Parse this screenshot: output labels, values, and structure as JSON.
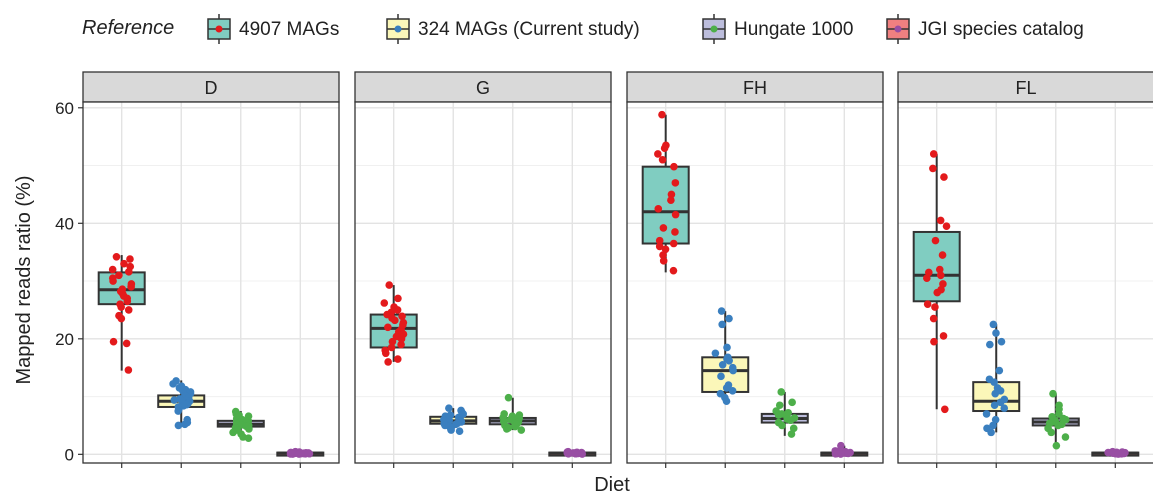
{
  "chart_data": {
    "type": "box",
    "xlabel": "Diet",
    "ylabel": "Mapped reads ratio (%)",
    "ylim": [
      -1.5,
      61
    ],
    "y_ticks": [
      "0",
      "20",
      "40",
      "60"
    ],
    "y_tick_values": [
      0,
      20,
      40,
      60
    ],
    "legend": {
      "title": "Reference",
      "position": "top",
      "entries": [
        "4907 MAGs",
        "324 MAGs (Current study)",
        "Hungate 1000",
        "JGI species catalog"
      ]
    },
    "panels": [
      "D",
      "G",
      "FH",
      "FL"
    ],
    "series": [
      {
        "name": "4907 MAGs",
        "fill": "#80cdc1",
        "point_color": "#e31a1c"
      },
      {
        "name": "324 MAGs (Current study)",
        "fill": "#fbf7b9",
        "point_color": "#3a7fbf"
      },
      {
        "name": "Hungate 1000",
        "fill": "#bcbddc",
        "point_color": "#4daf4a"
      },
      {
        "name": "JGI species catalog",
        "fill": "#f08080",
        "point_color": "#984ea3"
      }
    ],
    "boxes": {
      "D": [
        {
          "q1": 26.0,
          "median": 28.5,
          "q3": 31.5,
          "min": 14.5,
          "max": 34.5,
          "points": [
            34.2,
            33.8,
            33.0,
            32.5,
            32.0,
            31.6,
            31.0,
            30.5,
            30.0,
            29.5,
            29.0,
            28.6,
            28.2,
            27.8,
            27.4,
            27.0,
            26.5,
            26.0,
            25.5,
            25.0,
            24.0,
            23.5,
            19.5,
            19.2,
            14.6
          ]
        },
        {
          "q1": 8.2,
          "median": 9.2,
          "q3": 10.2,
          "min": 5.0,
          "max": 12.8,
          "points": [
            12.7,
            12.2,
            11.8,
            11.5,
            11.2,
            11.0,
            10.8,
            10.5,
            10.2,
            10.0,
            9.8,
            9.6,
            9.4,
            9.2,
            9.0,
            8.8,
            8.6,
            8.4,
            8.2,
            7.8,
            7.5,
            6.0,
            5.5,
            5.2,
            5.0
          ]
        },
        {
          "q1": 4.8,
          "median": 5.2,
          "q3": 5.8,
          "min": 2.8,
          "max": 7.5,
          "points": [
            7.4,
            7.0,
            6.8,
            6.6,
            6.4,
            6.2,
            6.0,
            5.8,
            5.7,
            5.6,
            5.5,
            5.4,
            5.3,
            5.2,
            5.1,
            5.0,
            4.9,
            4.8,
            4.6,
            4.4,
            4.2,
            3.8,
            3.5,
            3.0,
            2.8
          ]
        },
        {
          "q1": 0.1,
          "median": 0.2,
          "q3": 0.3,
          "min": 0.0,
          "max": 0.5,
          "points": [
            0.45,
            0.4,
            0.38,
            0.35,
            0.32,
            0.3,
            0.28,
            0.26,
            0.24,
            0.22,
            0.2,
            0.18,
            0.16,
            0.14,
            0.12,
            0.1,
            0.08,
            0.06,
            0.05,
            0.04
          ]
        }
      ],
      "G": [
        {
          "q1": 18.5,
          "median": 21.8,
          "q3": 24.2,
          "min": 16.0,
          "max": 29.3,
          "points": [
            29.3,
            27.0,
            26.2,
            25.5,
            25.0,
            24.6,
            24.2,
            23.9,
            23.6,
            23.2,
            22.8,
            22.4,
            22.0,
            21.6,
            21.2,
            20.8,
            20.4,
            20.0,
            19.5,
            19.0,
            18.5,
            18.0,
            17.5,
            16.5,
            16.0
          ]
        },
        {
          "q1": 5.3,
          "median": 5.8,
          "q3": 6.5,
          "min": 4.0,
          "max": 8.0,
          "points": [
            8.0,
            7.6,
            7.3,
            7.0,
            6.8,
            6.6,
            6.4,
            6.2,
            6.0,
            5.9,
            5.8,
            5.7,
            5.6,
            5.5,
            5.4,
            5.3,
            5.2,
            5.0,
            4.8,
            4.6,
            4.4,
            4.2,
            4.0
          ]
        },
        {
          "q1": 5.2,
          "median": 5.8,
          "q3": 6.3,
          "min": 4.2,
          "max": 9.8,
          "points": [
            9.8,
            7.0,
            6.8,
            6.6,
            6.4,
            6.2,
            6.0,
            5.9,
            5.8,
            5.7,
            5.6,
            5.5,
            5.4,
            5.3,
            5.2,
            5.0,
            4.8,
            4.6,
            4.4,
            4.2
          ]
        },
        {
          "q1": 0.1,
          "median": 0.2,
          "q3": 0.3,
          "min": 0.0,
          "max": 0.5,
          "points": [
            0.45,
            0.4,
            0.35,
            0.3,
            0.28,
            0.25,
            0.22,
            0.2,
            0.18,
            0.15,
            0.12,
            0.1,
            0.08,
            0.05
          ]
        }
      ],
      "FH": [
        {
          "q1": 36.5,
          "median": 42.0,
          "q3": 49.8,
          "min": 31.5,
          "max": 58.8,
          "points": [
            58.8,
            53.5,
            53.0,
            52.0,
            51.0,
            49.8,
            47.0,
            45.0,
            44.0,
            42.5,
            41.5,
            39.2,
            38.5,
            37.0,
            36.5,
            36.0,
            35.5,
            34.5,
            33.5,
            31.8
          ]
        },
        {
          "q1": 10.8,
          "median": 14.5,
          "q3": 16.8,
          "min": 8.8,
          "max": 24.8,
          "points": [
            24.8,
            23.5,
            22.5,
            18.5,
            17.5,
            16.8,
            16.5,
            16.2,
            15.5,
            15.0,
            14.5,
            13.5,
            12.0,
            11.5,
            11.0,
            10.5,
            9.8,
            9.2
          ]
        },
        {
          "q1": 5.5,
          "median": 6.2,
          "q3": 7.0,
          "min": 3.2,
          "max": 10.8,
          "points": [
            10.8,
            9.0,
            8.5,
            7.5,
            7.2,
            7.0,
            6.8,
            6.5,
            6.3,
            6.1,
            5.9,
            5.5,
            5.0,
            4.5,
            3.5
          ]
        },
        {
          "q1": 0.1,
          "median": 0.2,
          "q3": 0.3,
          "min": 0.0,
          "max": 1.5,
          "points": [
            1.5,
            0.6,
            0.5,
            0.45,
            0.4,
            0.35,
            0.3,
            0.25,
            0.2,
            0.18,
            0.15,
            0.1,
            0.08,
            0.05
          ]
        }
      ],
      "FL": [
        {
          "q1": 26.5,
          "median": 31.0,
          "q3": 38.5,
          "min": 7.8,
          "max": 52.0,
          "points": [
            52.0,
            49.5,
            48.0,
            40.5,
            39.5,
            37.0,
            34.5,
            32.0,
            31.5,
            31.0,
            30.5,
            29.5,
            28.5,
            28.0,
            26.0,
            25.5,
            23.5,
            20.5,
            19.5,
            7.8
          ]
        },
        {
          "q1": 7.5,
          "median": 9.2,
          "q3": 12.5,
          "min": 3.8,
          "max": 22.5,
          "points": [
            22.5,
            21.0,
            19.5,
            19.0,
            14.5,
            13.0,
            12.5,
            11.5,
            11.0,
            10.5,
            9.5,
            9.0,
            8.5,
            8.0,
            7.0,
            6.0,
            5.0,
            4.5,
            3.8
          ]
        },
        {
          "q1": 5.0,
          "median": 5.6,
          "q3": 6.2,
          "min": 1.5,
          "max": 10.5,
          "points": [
            10.5,
            8.5,
            7.8,
            7.0,
            6.5,
            6.2,
            6.0,
            5.8,
            5.6,
            5.4,
            5.2,
            5.0,
            4.5,
            3.8,
            3.0,
            1.5
          ]
        },
        {
          "q1": 0.1,
          "median": 0.2,
          "q3": 0.3,
          "min": 0.0,
          "max": 0.5,
          "points": [
            0.45,
            0.4,
            0.35,
            0.3,
            0.28,
            0.25,
            0.22,
            0.2,
            0.18,
            0.15,
            0.12,
            0.1,
            0.08,
            0.05
          ]
        }
      ]
    },
    "grid": true
  }
}
